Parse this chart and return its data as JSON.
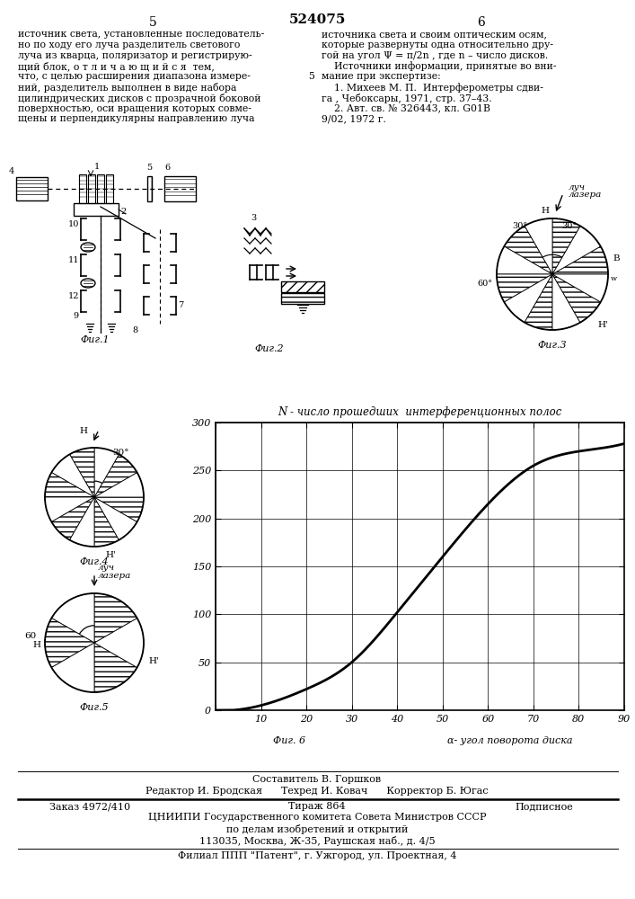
{
  "page_title": "524075",
  "page_num_left": "5",
  "page_num_right": "6",
  "bg_color": "#ffffff",
  "left_lines": [
    "источник света, установленные последователь-",
    "но по ходу его луча разделитель светового",
    "луча из кварца, поляризатор и регистрирую-",
    "щий блок, о т л и ч а ю щ и й с я  тем,",
    "что, с целью расширения диапазона измере-",
    "ний, разделитель выполнен в виде набора",
    "цилиндрических дисков с прозрачной боковой",
    "поверхностью, оси вращения которых совме-",
    "щены и перпендикулярны направлению луча"
  ],
  "right_lines": [
    "источника света и своим оптическим осям,",
    "которые развернуты одна относительно дру-",
    "гой на угол Ψ = π/2n , где n – число дисков.",
    "    Источники информации, принятые во вни-",
    "мание при экспертизе:",
    "    1. Михеев М. П.  Интерферометры сдви-",
    "га , Чебоксары, 1971, стр. 37–43.",
    "    2. Авт. св. № 326443, кл. G01B",
    "9/02, 1972 г."
  ],
  "line_num_marker": "5",
  "line_num_marker_row": 4,
  "graph_title": "N - число прошедших  интерференционных полос",
  "graph_xlabel": "α- угол поворота диска",
  "graph_fig_label": "Фиг. 6",
  "graph_yticks": [
    0,
    50,
    100,
    150,
    200,
    250,
    300
  ],
  "graph_xticks": [
    0,
    10,
    20,
    30,
    40,
    50,
    60,
    70,
    80,
    90
  ],
  "graph_xlim": [
    0,
    90
  ],
  "graph_ylim": [
    0,
    300
  ],
  "footer_composer": "Составитель В. Горшков",
  "footer_editor_line": "Редактор И. Бродская      Техред И. Ковач      Корректор Б. Югас",
  "footer_order": "Заказ 4972/410",
  "footer_tirazh": "Тираж 864",
  "footer_podp": "Подписное",
  "footer_org1": "ЦНИИПИ Государственного комитета Совета Министров СССР",
  "footer_org2": "по делам изобретений и открытий",
  "footer_addr": "113035, Москва, Ж-35, Раушская наб., д. 4/5",
  "footer_filial": "Филиал ППП \"Патент\", г. Ужгород, ул. Проектная, 4"
}
